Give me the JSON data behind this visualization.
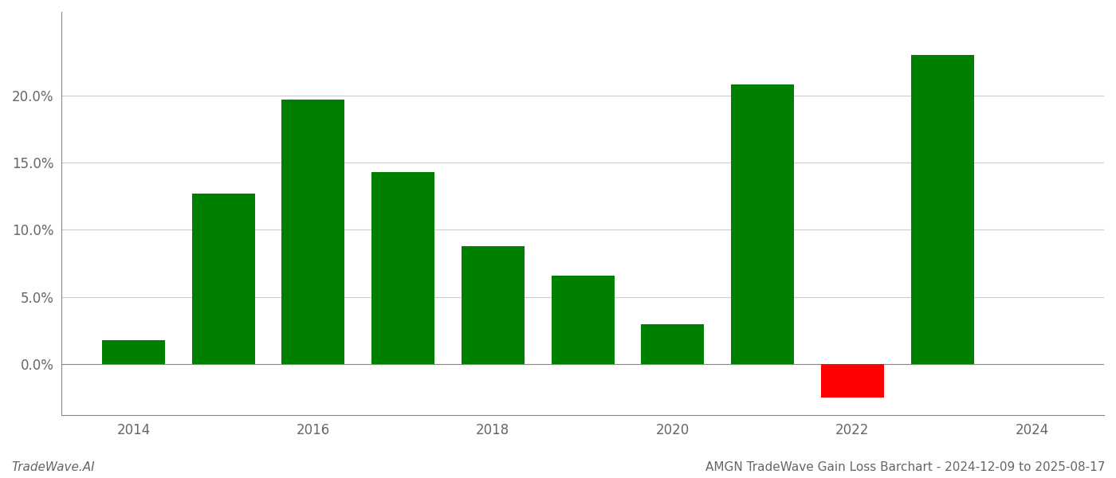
{
  "years": [
    2014,
    2015,
    2016,
    2017,
    2018,
    2019,
    2020,
    2021,
    2022,
    2023
  ],
  "values": [
    0.018,
    0.127,
    0.197,
    0.143,
    0.088,
    0.066,
    0.03,
    0.208,
    -0.025,
    0.23
  ],
  "bar_colors": [
    "#008000",
    "#008000",
    "#008000",
    "#008000",
    "#008000",
    "#008000",
    "#008000",
    "#008000",
    "#ff0000",
    "#008000"
  ],
  "title": "AMGN TradeWave Gain Loss Barchart - 2024-12-09 to 2025-08-17",
  "watermark": "TradeWave.AI",
  "ylim_min": -0.038,
  "ylim_max": 0.262,
  "yticks": [
    0.0,
    0.05,
    0.1,
    0.15,
    0.2
  ],
  "background_color": "#ffffff",
  "grid_color": "#cccccc",
  "bar_width": 0.7
}
